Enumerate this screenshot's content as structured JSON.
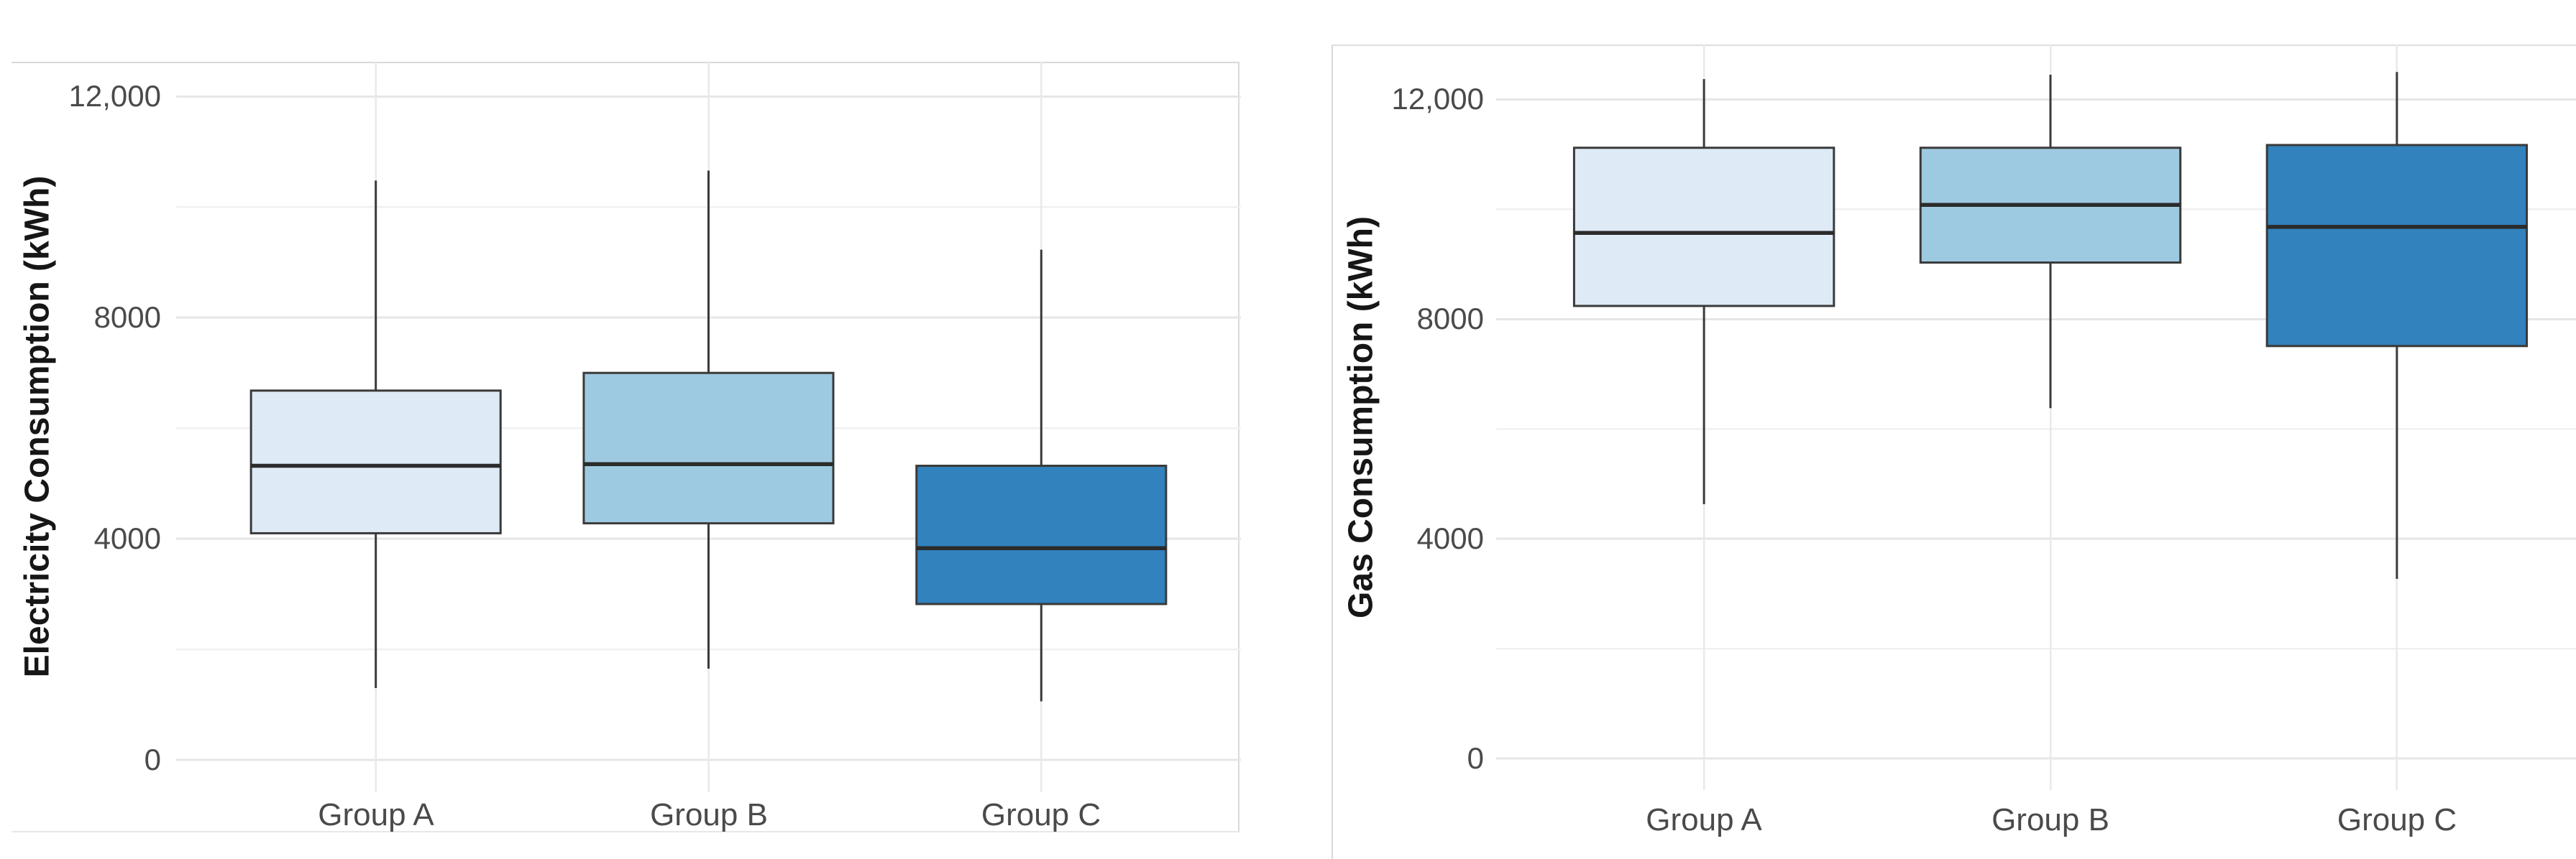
{
  "chart_data": [
    {
      "type": "box",
      "title": "",
      "xlabel": "",
      "ylabel": "Electricity Consumption (kWh)",
      "categories": [
        "Group A",
        "Group B",
        "Group C"
      ],
      "y_tick_labels": [
        "0",
        "4000",
        "8000",
        "12,000"
      ],
      "y_tick_values": [
        0,
        4000,
        8000,
        12000
      ],
      "minor_grid_values": [
        2000,
        6000,
        10000
      ],
      "ylim": [
        -584,
        12628
      ],
      "grid": true,
      "legend_position": "none",
      "series": [
        {
          "name": "Group A",
          "whisker_low": 1300,
          "q1": 4100,
          "median": 5320,
          "q3": 6680,
          "whisker_high": 10480,
          "fill": "#DEEBF7"
        },
        {
          "name": "Group B",
          "whisker_low": 1650,
          "q1": 4280,
          "median": 5350,
          "q3": 7000,
          "whisker_high": 10660,
          "fill": "#9ECAE1"
        },
        {
          "name": "Group C",
          "whisker_low": 1060,
          "q1": 2820,
          "median": 3830,
          "q3": 5320,
          "whisker_high": 9230,
          "fill": "#3182BD"
        }
      ],
      "colors": {
        "box_border": "#3a3a3a",
        "median_line": "#2b2b2b",
        "whisker": "#3a3a3a",
        "grid_major": "#e6e6e6",
        "grid_minor": "#f0f0f0",
        "grid_vertical": "#e9e9e9",
        "panel_background": "#ffffff"
      }
    },
    {
      "type": "box",
      "title": "",
      "xlabel": "",
      "ylabel": "Gas Consumption (kWh)",
      "categories": [
        "Group A",
        "Group B",
        "Group C"
      ],
      "y_tick_labels": [
        "0",
        "4000",
        "8000",
        "12,000"
      ],
      "y_tick_values": [
        0,
        4000,
        8000,
        12000
      ],
      "minor_grid_values": [
        2000,
        6000,
        10000
      ],
      "ylim": [
        -575,
        13000
      ],
      "grid": true,
      "legend_position": "none",
      "series": [
        {
          "name": "Group A",
          "whisker_low": 4630,
          "q1": 8240,
          "median": 9570,
          "q3": 11120,
          "whisker_high": 12370,
          "fill": "#DEEBF7"
        },
        {
          "name": "Group B",
          "whisker_low": 6380,
          "q1": 9030,
          "median": 10080,
          "q3": 11120,
          "whisker_high": 12450,
          "fill": "#9ECAE1"
        },
        {
          "name": "Group C",
          "whisker_low": 3270,
          "q1": 7510,
          "median": 9680,
          "q3": 11170,
          "whisker_high": 12500,
          "fill": "#3182BD"
        }
      ],
      "colors": {
        "box_border": "#3a3a3a",
        "median_line": "#2b2b2b",
        "whisker": "#3a3a3a",
        "grid_major": "#e6e6e6",
        "grid_minor": "#f0f0f0",
        "grid_vertical": "#e9e9e9",
        "panel_background": "#ffffff"
      }
    }
  ]
}
